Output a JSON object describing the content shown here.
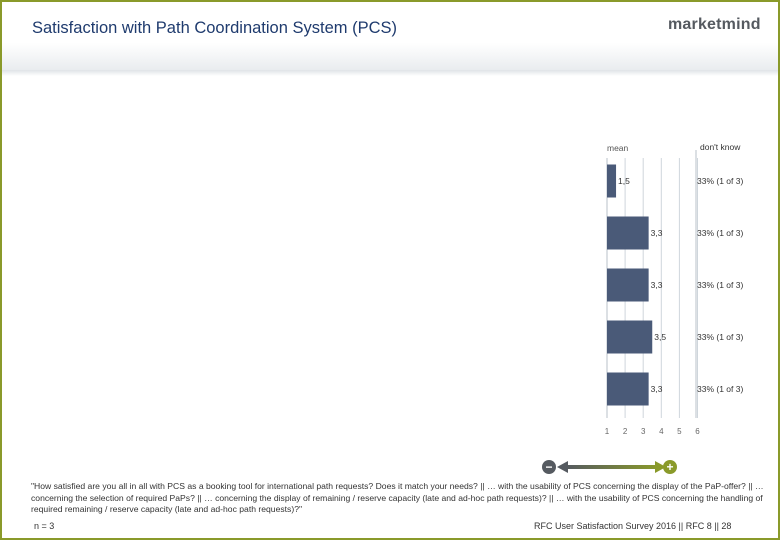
{
  "header": {
    "title": "Satisfaction with Path Coordination System (PCS)",
    "logo_text": "marketmind"
  },
  "chart_data": {
    "type": "bar",
    "orientation": "horizontal",
    "mean_label": "mean",
    "dont_know_label": "don't know",
    "xlim": [
      1,
      6
    ],
    "x_ticks": [
      "1",
      "2",
      "3",
      "4",
      "5",
      "6"
    ],
    "categories": [
      "",
      "",
      "",
      "",
      ""
    ],
    "values": [
      1.5,
      3.3,
      3.3,
      3.5,
      3.3
    ],
    "value_labels": [
      "1,5",
      "3,3",
      "3,3",
      "3,5",
      "3,3"
    ],
    "dont_know": [
      "33% (1 of 3)",
      "33% (1 of 3)",
      "33% (1 of 3)",
      "33% (1 of 3)",
      "33% (1 of 3)"
    ],
    "grid": true,
    "bar_color": "#4a5a78"
  },
  "legend": {
    "minus_symbol": "−",
    "plus_symbol": "+",
    "minus_color": "#555a60",
    "plus_color": "#8a9a2a"
  },
  "question": "\"How satisfied are you all in all with PCS as a booking tool for international path requests? Does it match your needs? || … with the usability of PCS concerning the display of the PaP-offer? || … concerning the selection of required PaPs? || … concerning the display of remaining / reserve capacity (late and ad-hoc path requests)? || … with the usability of PCS concerning the handling of required remaining / reserve capacity (late and ad-hoc path requests)?\"",
  "footer": {
    "n": "n = 3",
    "source": "RFC User Satisfaction Survey 2016 || RFC 8 || 28"
  }
}
